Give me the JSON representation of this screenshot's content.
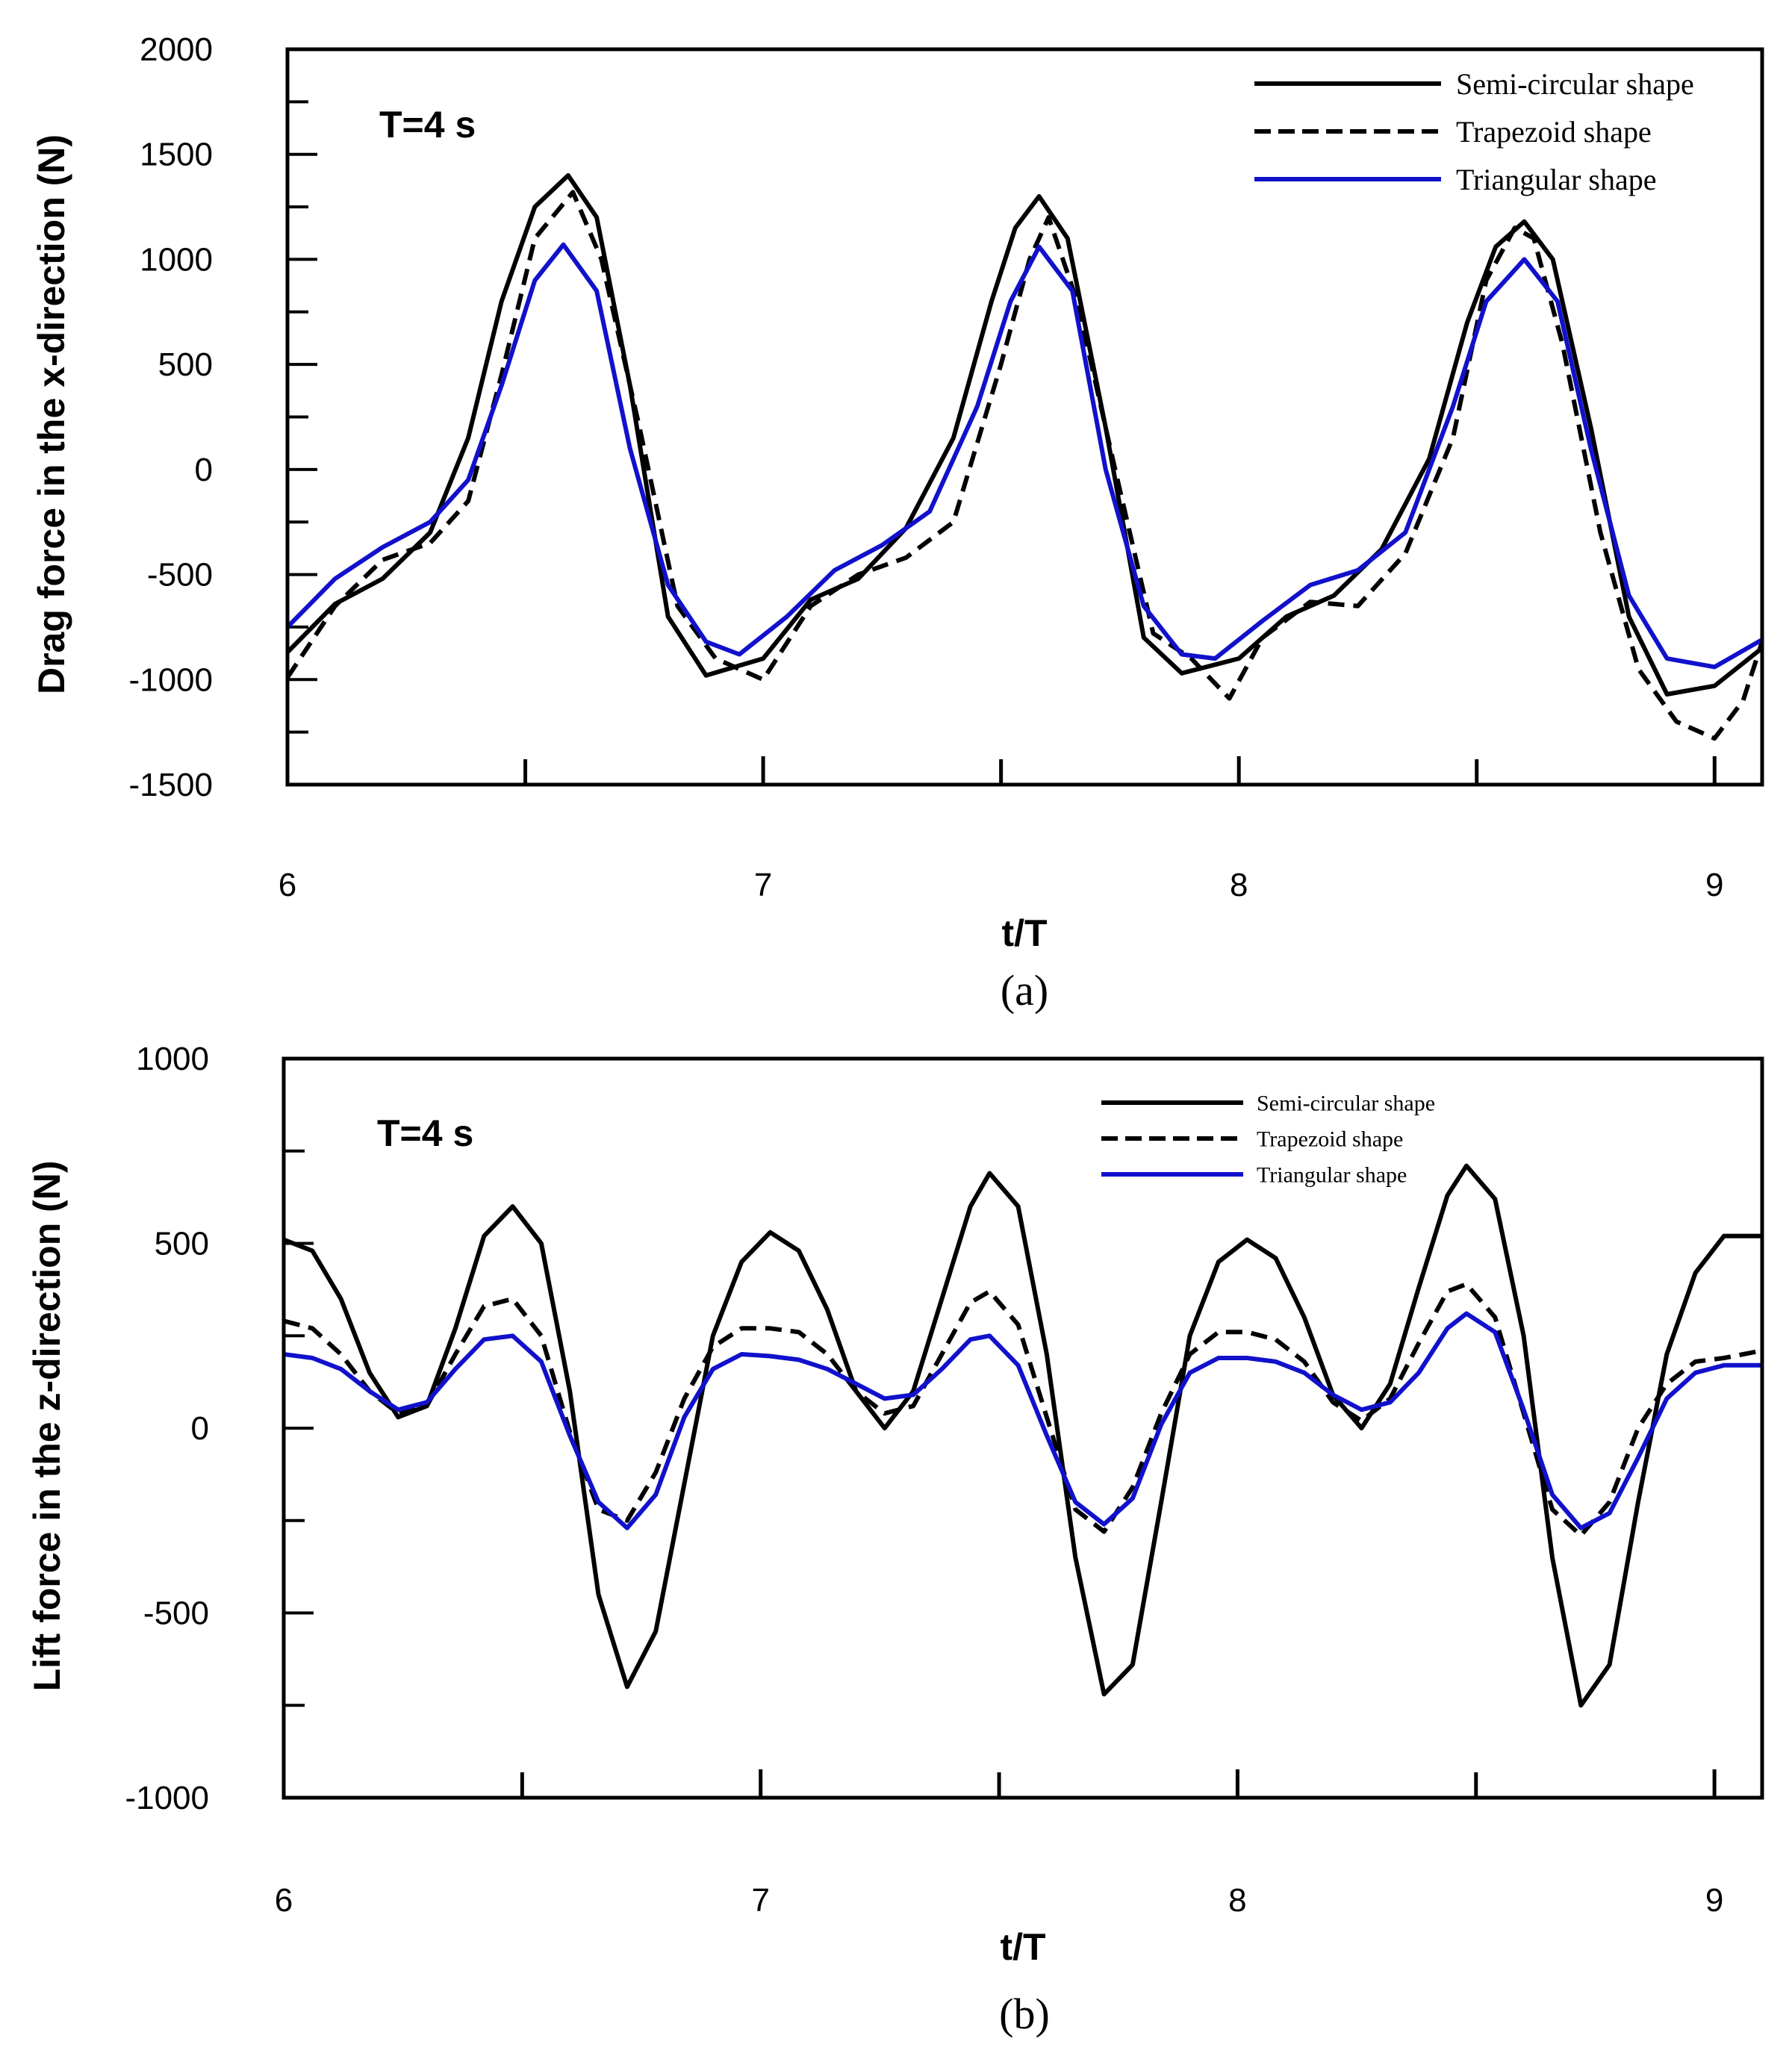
{
  "chart_data": [
    {
      "panel": "a",
      "type": "line",
      "annotation": "T=4 s",
      "xlabel": "t/T",
      "ylabel": "Drag force in the x-direction (N)",
      "caption": "(a)",
      "xlim": [
        6,
        9.1
      ],
      "ylim": [
        -1500,
        2000
      ],
      "xticks": [
        6,
        7,
        8,
        9
      ],
      "yticks": [
        -1500,
        -1000,
        -500,
        0,
        500,
        1000,
        1500,
        2000
      ],
      "legend_position": "top-right",
      "series": [
        {
          "name": "Semi-circular shape",
          "color": "#000000",
          "style": "solid",
          "x": [
            6.0,
            6.1,
            6.2,
            6.3,
            6.38,
            6.45,
            6.52,
            6.59,
            6.65,
            6.72,
            6.8,
            6.88,
            7.0,
            7.1,
            7.2,
            7.3,
            7.4,
            7.48,
            7.53,
            7.58,
            7.64,
            7.72,
            7.8,
            7.88,
            8.0,
            8.1,
            8.2,
            8.3,
            8.4,
            8.48,
            8.54,
            8.6,
            8.66,
            8.74,
            8.82,
            8.9,
            9.0,
            9.1
          ],
          "y": [
            -870,
            -640,
            -520,
            -300,
            150,
            800,
            1250,
            1400,
            1200,
            400,
            -700,
            -980,
            -900,
            -620,
            -520,
            -280,
            150,
            800,
            1150,
            1300,
            1100,
            200,
            -800,
            -970,
            -900,
            -700,
            -600,
            -380,
            50,
            700,
            1060,
            1180,
            1000,
            200,
            -700,
            -1070,
            -1030,
            -850
          ]
        },
        {
          "name": "Trapezoid shape",
          "color": "#000000",
          "style": "dashed",
          "x": [
            6.0,
            6.1,
            6.2,
            6.3,
            6.38,
            6.45,
            6.52,
            6.6,
            6.66,
            6.74,
            6.82,
            6.9,
            7.0,
            7.1,
            7.2,
            7.3,
            7.4,
            7.5,
            7.56,
            7.6,
            7.66,
            7.74,
            7.82,
            7.9,
            7.98,
            8.05,
            8.15,
            8.25,
            8.35,
            8.45,
            8.52,
            8.58,
            8.62,
            8.68,
            8.76,
            8.84,
            8.92,
            9.0,
            9.06,
            9.1
          ],
          "y": [
            -990,
            -650,
            -430,
            -350,
            -150,
            450,
            1100,
            1320,
            1000,
            200,
            -650,
            -900,
            -1000,
            -650,
            -500,
            -420,
            -250,
            500,
            1000,
            1200,
            800,
            0,
            -780,
            -900,
            -1090,
            -800,
            -630,
            -650,
            -400,
            150,
            900,
            1150,
            1100,
            600,
            -300,
            -950,
            -1200,
            -1280,
            -1100,
            -820
          ]
        },
        {
          "name": "Triangular shape",
          "color": "#1111CC",
          "style": "solid",
          "x": [
            6.0,
            6.1,
            6.2,
            6.3,
            6.38,
            6.45,
            6.52,
            6.58,
            6.65,
            6.72,
            6.8,
            6.88,
            6.95,
            7.05,
            7.15,
            7.25,
            7.35,
            7.45,
            7.52,
            7.58,
            7.65,
            7.72,
            7.8,
            7.88,
            7.95,
            8.05,
            8.15,
            8.25,
            8.35,
            8.45,
            8.52,
            8.6,
            8.67,
            8.74,
            8.82,
            8.9,
            9.0,
            9.1
          ],
          "y": [
            -750,
            -520,
            -370,
            -250,
            -50,
            400,
            900,
            1070,
            850,
            100,
            -550,
            -820,
            -880,
            -700,
            -480,
            -360,
            -200,
            300,
            800,
            1060,
            850,
            0,
            -650,
            -880,
            -900,
            -720,
            -550,
            -480,
            -300,
            300,
            800,
            1000,
            800,
            100,
            -600,
            -900,
            -940,
            -810
          ]
        }
      ]
    },
    {
      "panel": "b",
      "type": "line",
      "annotation": "T=4 s",
      "xlabel": "t/T",
      "ylabel": "Lift force in the z-direction (N)",
      "caption": "(b)",
      "xlim": [
        6,
        9.1
      ],
      "ylim": [
        -1000,
        1000
      ],
      "xticks": [
        6,
        7,
        8,
        9
      ],
      "yticks": [
        -1000,
        -500,
        0,
        500,
        1000
      ],
      "legend_position": "top-right",
      "series": [
        {
          "name": "Semi-circular shape",
          "color": "#000000",
          "style": "solid",
          "x": [
            6.0,
            6.06,
            6.12,
            6.18,
            6.24,
            6.3,
            6.36,
            6.42,
            6.48,
            6.54,
            6.6,
            6.66,
            6.72,
            6.78,
            6.84,
            6.9,
            6.96,
            7.02,
            7.08,
            7.14,
            7.2,
            7.26,
            7.32,
            7.38,
            7.44,
            7.48,
            7.54,
            7.6,
            7.66,
            7.72,
            7.78,
            7.84,
            7.9,
            7.96,
            8.02,
            8.08,
            8.14,
            8.2,
            8.26,
            8.32,
            8.38,
            8.44,
            8.48,
            8.54,
            8.6,
            8.66,
            8.72,
            8.78,
            8.84,
            8.9,
            8.96,
            9.02,
            9.1
          ],
          "y": [
            510,
            480,
            350,
            150,
            30,
            60,
            270,
            520,
            600,
            500,
            100,
            -450,
            -700,
            -550,
            -150,
            250,
            450,
            530,
            480,
            320,
            100,
            0,
            100,
            350,
            600,
            690,
            600,
            200,
            -350,
            -720,
            -640,
            -200,
            250,
            450,
            510,
            460,
            300,
            90,
            0,
            120,
            380,
            630,
            710,
            620,
            250,
            -350,
            -750,
            -640,
            -200,
            200,
            420,
            520,
            520
          ]
        },
        {
          "name": "Trapezoid shape",
          "color": "#000000",
          "style": "dashed",
          "x": [
            6.0,
            6.06,
            6.12,
            6.18,
            6.24,
            6.3,
            6.36,
            6.42,
            6.48,
            6.54,
            6.6,
            6.66,
            6.72,
            6.78,
            6.84,
            6.9,
            6.96,
            7.02,
            7.08,
            7.14,
            7.2,
            7.26,
            7.32,
            7.38,
            7.44,
            7.48,
            7.54,
            7.6,
            7.66,
            7.72,
            7.78,
            7.84,
            7.9,
            7.96,
            8.02,
            8.08,
            8.14,
            8.2,
            8.26,
            8.32,
            8.38,
            8.44,
            8.48,
            8.54,
            8.6,
            8.66,
            8.72,
            8.78,
            8.84,
            8.9,
            8.96,
            9.02,
            9.1
          ],
          "y": [
            290,
            270,
            200,
            100,
            40,
            60,
            200,
            330,
            350,
            250,
            -10,
            -220,
            -250,
            -120,
            80,
            220,
            270,
            270,
            260,
            200,
            100,
            40,
            60,
            200,
            340,
            370,
            280,
            30,
            -220,
            -280,
            -160,
            40,
            200,
            260,
            260,
            240,
            180,
            70,
            20,
            80,
            230,
            370,
            390,
            300,
            40,
            -220,
            -290,
            -200,
            0,
            120,
            180,
            190,
            210
          ]
        },
        {
          "name": "Triangular shape",
          "color": "#1111CC",
          "style": "solid",
          "x": [
            6.0,
            6.06,
            6.12,
            6.18,
            6.24,
            6.3,
            6.36,
            6.42,
            6.48,
            6.54,
            6.6,
            6.66,
            6.72,
            6.78,
            6.84,
            6.9,
            6.96,
            7.02,
            7.08,
            7.14,
            7.2,
            7.26,
            7.32,
            7.38,
            7.44,
            7.48,
            7.54,
            7.6,
            7.66,
            7.72,
            7.78,
            7.84,
            7.9,
            7.96,
            8.02,
            8.08,
            8.14,
            8.2,
            8.26,
            8.32,
            8.38,
            8.44,
            8.48,
            8.54,
            8.6,
            8.66,
            8.72,
            8.78,
            8.84,
            8.9,
            8.96,
            9.02,
            9.1
          ],
          "y": [
            200,
            190,
            160,
            100,
            50,
            70,
            160,
            240,
            250,
            180,
            -20,
            -200,
            -270,
            -180,
            30,
            160,
            200,
            195,
            185,
            160,
            120,
            80,
            90,
            160,
            240,
            250,
            170,
            -20,
            -200,
            -260,
            -190,
            10,
            150,
            190,
            190,
            180,
            150,
            90,
            50,
            70,
            150,
            270,
            310,
            260,
            50,
            -180,
            -270,
            -230,
            -80,
            80,
            150,
            170,
            170
          ]
        }
      ]
    }
  ]
}
